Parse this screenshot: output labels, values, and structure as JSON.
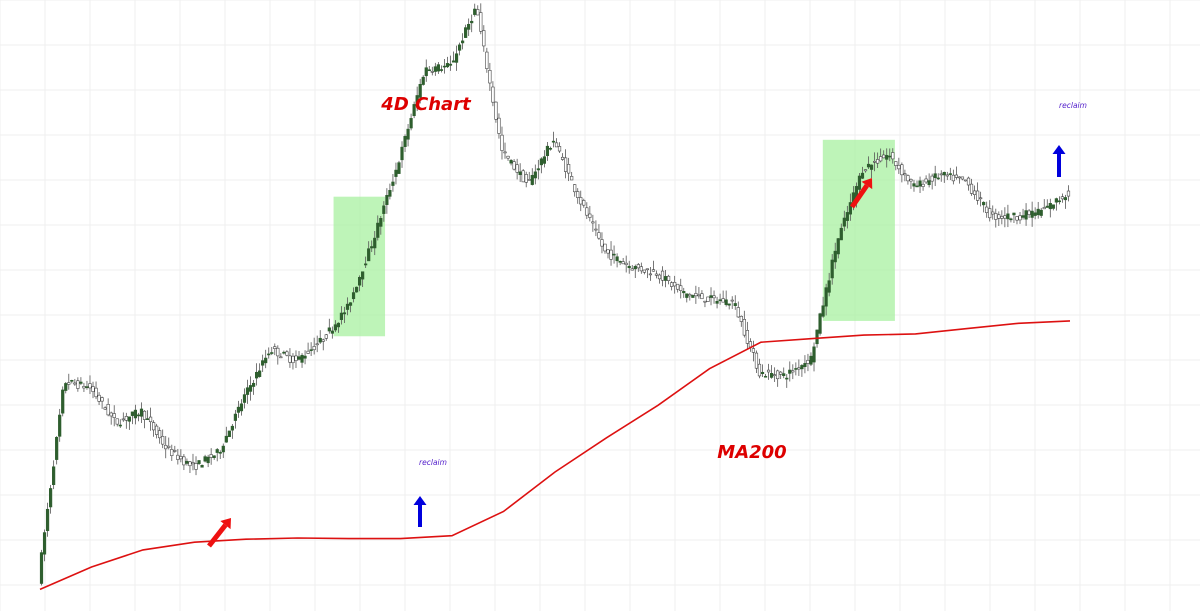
{
  "chart_data": {
    "type": "line",
    "title": "4D Chart",
    "xlabel": "",
    "ylabel": "",
    "grid": true,
    "x": [
      0,
      5,
      10,
      15,
      20,
      25,
      30,
      35,
      40,
      45,
      50,
      55,
      60,
      65,
      70,
      75,
      80,
      85,
      90,
      95,
      100
    ],
    "series": [
      {
        "name": "MA200",
        "values": [
          18,
          56,
          85,
          98,
          103,
          105,
          104,
          104,
          109,
          150,
          217,
          275,
          330,
          392,
          437,
          443,
          449,
          451,
          460,
          469,
          473
        ]
      }
    ],
    "price_path": [
      35,
      370,
      360,
      300,
      320,
      255,
      225,
      250,
      345,
      425,
      405,
      440,
      495,
      610,
      745,
      900,
      905,
      1005,
      760,
      705,
      780,
      680,
      590,
      565,
      555,
      520,
      510,
      505,
      385,
      380,
      410,
      605,
      730,
      755,
      700,
      720,
      710,
      650,
      650,
      660,
      690
    ],
    "ylim": [
      0,
      1000
    ],
    "annotations": {
      "title_label": "4D Chart",
      "ma_label": "MA200",
      "reclaim_label_1": "reclaim",
      "reclaim_label_2": "reclaim"
    },
    "highlight_ranges": [
      {
        "x": [
          28.5,
          33.5
        ]
      },
      {
        "x": [
          76,
          83
        ]
      }
    ],
    "colors": {
      "ma": "#dd1111",
      "up_candle": "#2e5e2e",
      "highlight": "#a8f0a0",
      "red_arrow": "#ee1111",
      "blue_arrow": "#0000dd",
      "reclaim_text": "#5522cc",
      "label": "#dd0000",
      "grid": "#efefef"
    }
  }
}
